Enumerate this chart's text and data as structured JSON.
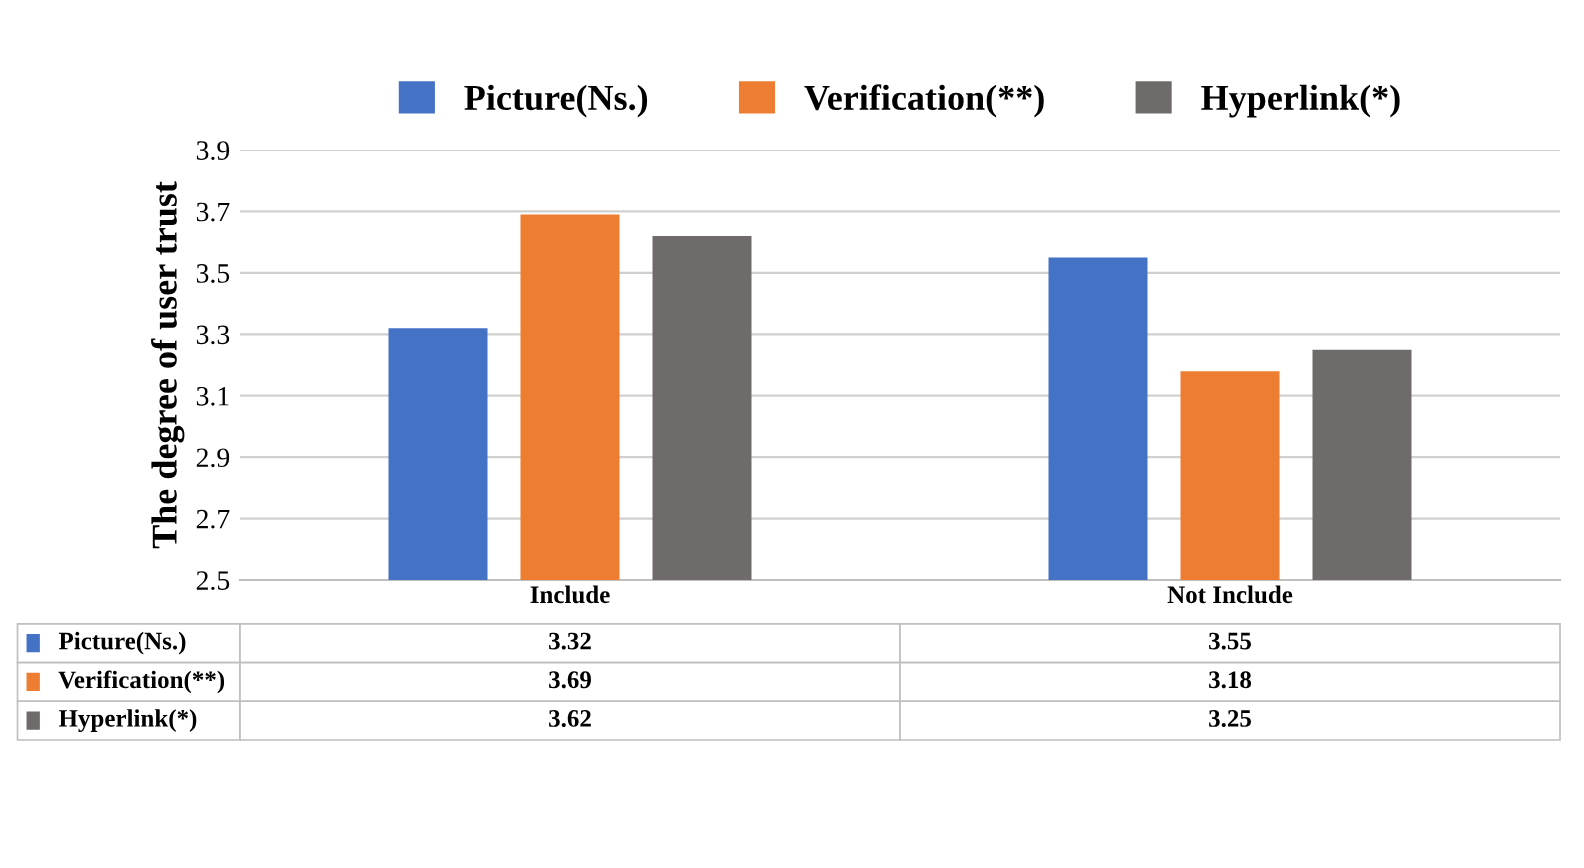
{
  "chart_data": {
    "type": "bar",
    "ylabel": "The degree of user trust",
    "categories": [
      "Include",
      "Not Include"
    ],
    "series": [
      {
        "name": "Picture(Ns.)",
        "color": "#4472c4",
        "values": [
          3.32,
          3.55
        ]
      },
      {
        "name": "Verification(**)",
        "color": "#ed7d31",
        "values": [
          3.69,
          3.18
        ]
      },
      {
        "name": "Hyperlink(*)",
        "color": "#6f6b6b",
        "values": [
          3.62,
          3.25
        ]
      }
    ],
    "ylim": [
      2.5,
      3.9
    ],
    "yticks": [
      2.5,
      2.7,
      2.9,
      3.1,
      3.3,
      3.5,
      3.7,
      3.9
    ],
    "grid": "y",
    "legend": "top",
    "data_labels": true
  }
}
